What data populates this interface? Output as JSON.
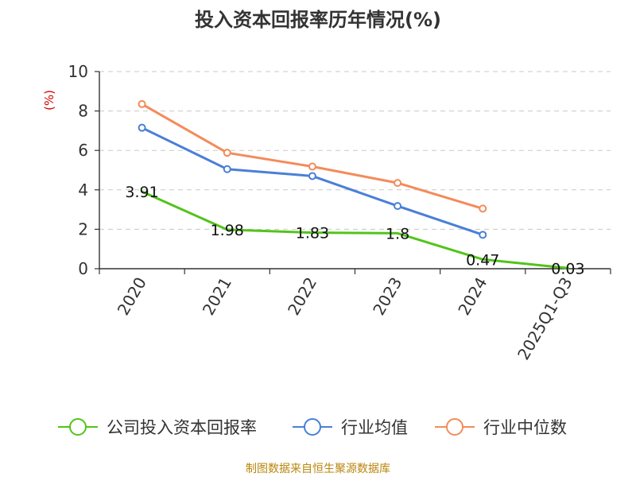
{
  "chart_data": {
    "type": "line",
    "title": "投入资本回报率历年情况(%)",
    "ylabel": "(%)",
    "xlabel": "",
    "ylim": [
      0,
      10
    ],
    "yticks": [
      0,
      2,
      4,
      6,
      8,
      10
    ],
    "grid": "horizontal dashed",
    "categories": [
      "2020",
      "2021",
      "2022",
      "2023",
      "2024",
      "2025Q1-Q3"
    ],
    "series": [
      {
        "name": "公司投入资本回报率",
        "color": "#52c41a",
        "values": [
          3.91,
          1.98,
          1.83,
          1.8,
          0.47,
          0.03
        ],
        "labels": [
          "3.91",
          "1.98",
          "1.83",
          "1.8",
          "0.47",
          "0.03"
        ],
        "show_markers": false,
        "show_labels": true
      },
      {
        "name": "行业均值",
        "color": "#4a7fd8",
        "values": [
          7.15,
          5.05,
          4.7,
          3.18,
          1.72,
          null
        ],
        "show_markers": true,
        "show_labels": false
      },
      {
        "name": "行业中位数",
        "color": "#f48b5a",
        "values": [
          8.35,
          5.88,
          5.18,
          4.35,
          3.05,
          null
        ],
        "show_markers": true,
        "show_labels": false
      }
    ],
    "legend_position": "bottom",
    "source": "制图数据来自恒生聚源数据库"
  }
}
